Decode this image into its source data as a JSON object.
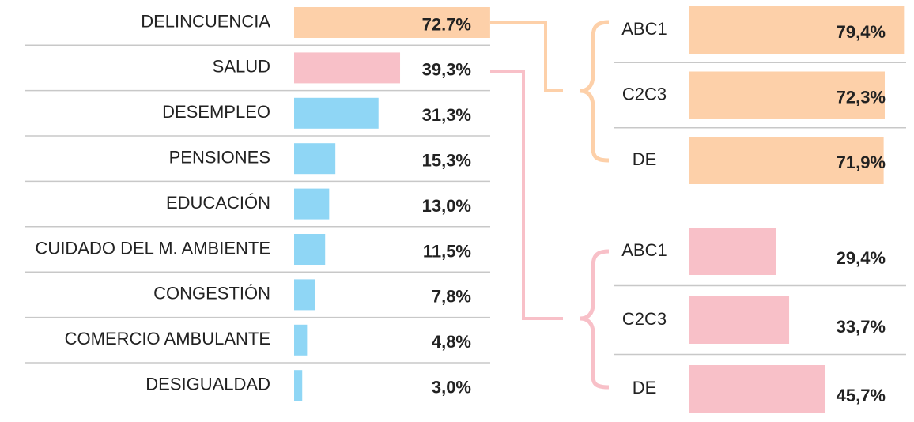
{
  "chart_data": [
    {
      "type": "bar",
      "categories": [
        "DELINCUENCIA",
        "SALUD",
        "DESEMPLEO",
        "PENSIONES",
        "EDUCACIÓN",
        "CUIDADO DEL M. AMBIENTE",
        "CONGESTIÓN",
        "COMERCIO AMBULANTE",
        "DESIGUALDAD"
      ],
      "values": [
        72.7,
        39.3,
        31.3,
        15.3,
        13.0,
        11.5,
        7.8,
        4.8,
        3.0
      ],
      "value_labels": [
        "72.7%",
        "39,3%",
        "31,3%",
        "15,3%",
        "13,0%",
        "11,5%",
        "7,8%",
        "4,8%",
        "3,0%"
      ],
      "colors": [
        "#fdd0a9",
        "#f8c0c8",
        "#8fd6f5",
        "#8fd6f5",
        "#8fd6f5",
        "#8fd6f5",
        "#8fd6f5",
        "#8fd6f5",
        "#8fd6f5"
      ]
    },
    {
      "type": "bar",
      "categories": [
        "ABC1",
        "C2C3",
        "DE"
      ],
      "values": [
        79.4,
        72.3,
        71.9
      ],
      "value_labels": [
        "79,4%",
        "72,3%",
        "71,9%"
      ],
      "color": "#fdd0a9"
    },
    {
      "type": "bar",
      "categories": [
        "ABC1",
        "C2C3",
        "DE"
      ],
      "values": [
        29.4,
        33.7,
        45.7
      ],
      "value_labels": [
        "29,4%",
        "33,7%",
        "45,7%"
      ],
      "color": "#f8c0c8"
    }
  ]
}
